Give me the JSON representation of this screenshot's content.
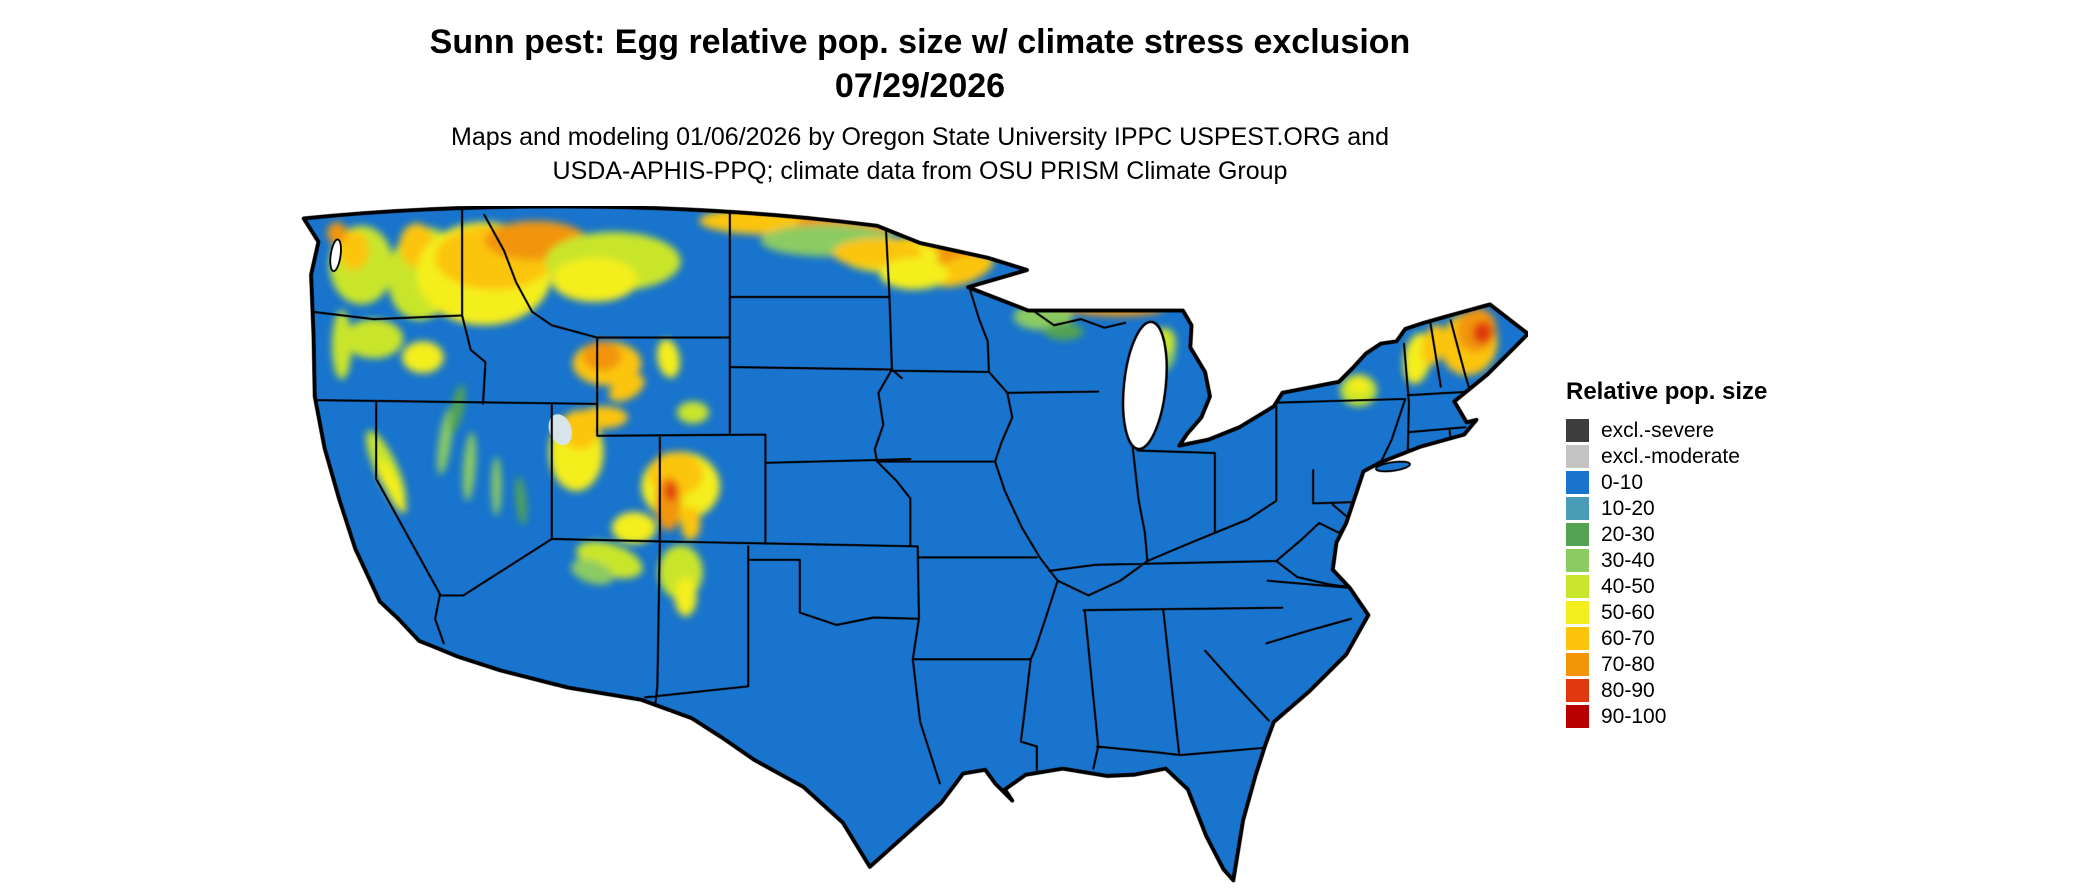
{
  "header": {
    "title_line1": "Sunn pest: Egg relative pop. size w/ climate stress exclusion",
    "title_line2": "07/29/2026",
    "subtitle_line1": "Maps and modeling 01/06/2026 by Oregon State University IPPC USPEST.ORG and",
    "subtitle_line2": "USDA-APHIS-PPQ; climate data from OSU PRISM Climate Group"
  },
  "legend": {
    "title": "Relative pop. size",
    "items": [
      {
        "label": "excl.-severe",
        "color": "#3d3d3d"
      },
      {
        "label": "excl.-moderate",
        "color": "#c4c4c4"
      },
      {
        "label": "0-10",
        "color": "#1874cd"
      },
      {
        "label": "10-20",
        "color": "#4a9bb5"
      },
      {
        "label": "20-30",
        "color": "#53a353"
      },
      {
        "label": "30-40",
        "color": "#8ccb62"
      },
      {
        "label": "40-50",
        "color": "#c9e52c"
      },
      {
        "label": "50-60",
        "color": "#f4ee1e"
      },
      {
        "label": "60-70",
        "color": "#fcc50c"
      },
      {
        "label": "70-80",
        "color": "#f2950a"
      },
      {
        "label": "80-90",
        "color": "#e0390f"
      },
      {
        "label": "90-100",
        "color": "#b80000"
      }
    ]
  },
  "map": {
    "region": "Continental United States",
    "base_class": "0-10",
    "water_color": "#ffffff",
    "border_color": "#000000",
    "hotspot_regions": [
      "Washington Cascades",
      "Idaho and western Montana Rockies",
      "Wyoming and Colorado Rockies",
      "Utah mountains",
      "Sierra Nevada",
      "northern North Dakota / Minnesota border band",
      "Minnesota arrowhead and upper Michigan",
      "northern New England and Maine",
      "Adirondacks"
    ]
  }
}
